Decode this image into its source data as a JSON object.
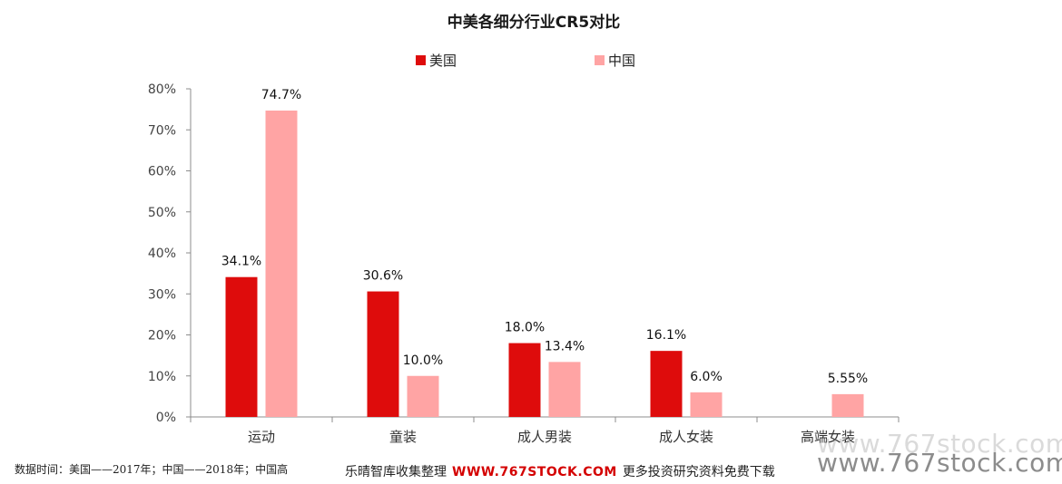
{
  "chart_data": {
    "type": "bar",
    "title": "中美各细分行业CR5对比",
    "categories": [
      "运动",
      "童装",
      "成人男装",
      "成人女装",
      "高端女装"
    ],
    "series": [
      {
        "name": "美国",
        "color": "#de0c0c",
        "values": [
          34.1,
          30.6,
          18.0,
          16.1,
          null
        ],
        "labels": [
          "34.1%",
          "30.6%",
          "18.0%",
          "16.1%",
          ""
        ]
      },
      {
        "name": "中国",
        "color": "#ffa4a4",
        "values": [
          74.7,
          10.0,
          13.4,
          6.0,
          5.55
        ],
        "labels": [
          "74.7%",
          "10.0%",
          "13.4%",
          "6.0%",
          "5.55%"
        ]
      }
    ],
    "ylim": [
      0,
      80
    ],
    "yticks": [
      0,
      10,
      20,
      30,
      40,
      50,
      60,
      70,
      80
    ],
    "ytick_labels": [
      "0%",
      "10%",
      "20%",
      "30%",
      "40%",
      "50%",
      "60%",
      "70%",
      "80%"
    ],
    "legend_position": "top",
    "grid": false
  },
  "footnote": "数据时间：美国——2017年；中国——2018年；中国高",
  "watermark": {
    "prefix": "乐晴智库收集整理",
    "site": "WWW.767STOCK.COM",
    "suffix": "更多投资研究资料免费下载",
    "big_text": "www.767stock.com"
  }
}
